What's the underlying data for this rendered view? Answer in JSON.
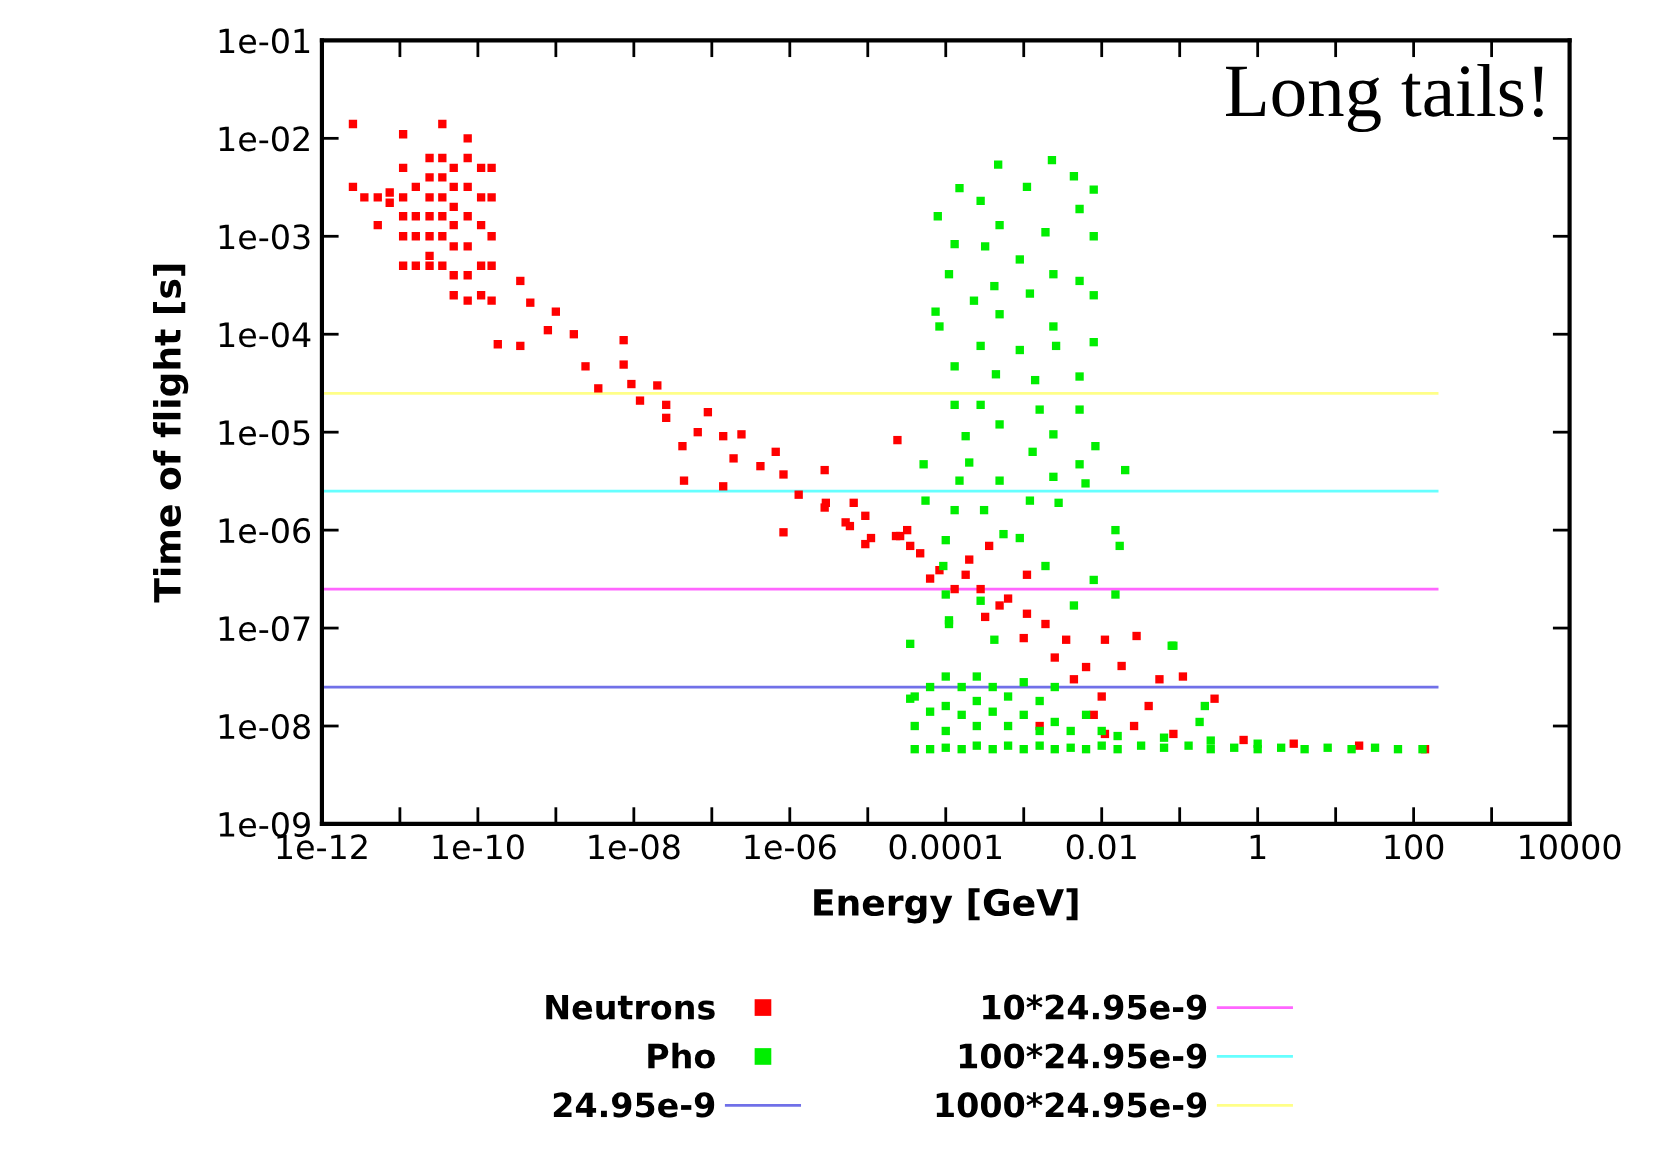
{
  "chart_data": {
    "type": "scatter",
    "xlabel": "Energy [GeV]",
    "ylabel": "Time of flight [s]",
    "log": "xy",
    "grid": false,
    "legend": "bottom",
    "annotations": [
      "Long tails!"
    ],
    "xlim": [
      1e-12,
      10000
    ],
    "ylim": [
      1e-09,
      0.1
    ],
    "xticks": [
      {
        "value": 1e-12,
        "label": "1e-12"
      },
      {
        "value": 1e-11,
        "label": null
      },
      {
        "value": 1e-10,
        "label": "1e-10"
      },
      {
        "value": 1e-09,
        "label": null
      },
      {
        "value": 1e-08,
        "label": "1e-08"
      },
      {
        "value": 1e-07,
        "label": null
      },
      {
        "value": 1e-06,
        "label": "1e-06"
      },
      {
        "value": 1e-05,
        "label": null
      },
      {
        "value": 0.0001,
        "label": "0.0001"
      },
      {
        "value": 0.001,
        "label": null
      },
      {
        "value": 0.01,
        "label": "0.01"
      },
      {
        "value": 0.1,
        "label": null
      },
      {
        "value": 1,
        "label": "1"
      },
      {
        "value": 10,
        "label": null
      },
      {
        "value": 100,
        "label": "100"
      },
      {
        "value": 1000,
        "label": null
      },
      {
        "value": 10000,
        "label": "10000"
      }
    ],
    "yticks": [
      {
        "value": 1e-09,
        "label": "1e-09"
      },
      {
        "value": 1e-08,
        "label": "1e-08"
      },
      {
        "value": 1e-07,
        "label": "1e-07"
      },
      {
        "value": 1e-06,
        "label": "1e-06"
      },
      {
        "value": 1e-05,
        "label": "1e-05"
      },
      {
        "value": 0.0001,
        "label": "1e-04"
      },
      {
        "value": 0.001,
        "label": "1e-03"
      },
      {
        "value": 0.01,
        "label": "1e-02"
      },
      {
        "value": 0.1,
        "label": "1e-01"
      }
    ],
    "series": [
      {
        "name": "Neutrons",
        "marker": "square",
        "color": "#ff0000",
        "x": [
          2.5e-12,
          2.5e-12,
          1.1e-11,
          3.5e-11,
          7.4e-11,
          3.5e-12,
          5.2e-12,
          5.2e-12,
          7.4e-12,
          7.4e-12,
          1.1e-11,
          1.1e-11,
          1.1e-11,
          1.1e-11,
          1.1e-11,
          1.6e-11,
          1.6e-11,
          1.6e-11,
          1.6e-11,
          2.4e-11,
          2.4e-11,
          2.4e-11,
          2.4e-11,
          2.4e-11,
          2.4e-11,
          2.4e-11,
          3.5e-11,
          3.5e-11,
          3.5e-11,
          3.5e-11,
          3.5e-11,
          3.5e-11,
          4.9e-11,
          4.9e-11,
          4.9e-11,
          4.9e-11,
          4.9e-11,
          4.9e-11,
          4.9e-11,
          7.4e-11,
          7.4e-11,
          7.4e-11,
          7.4e-11,
          7.4e-11,
          7.4e-11,
          1.1e-10,
          1.1e-10,
          1.1e-10,
          1.1e-10,
          1.1e-10,
          1.5e-10,
          1.5e-10,
          1.5e-10,
          1.5e-10,
          1.5e-10,
          3.5e-10,
          4.7e-10,
          1e-09,
          1.8e-10,
          3.5e-10,
          7.9e-10,
          1.7e-09,
          2.4e-09,
          3.5e-09,
          7.4e-09,
          7.4e-09,
          9.3e-09,
          1.2e-08,
          2e-08,
          2.6e-08,
          2.6e-08,
          8.9e-08,
          6.6e-08,
          4.2e-08,
          1.4e-07,
          2.4e-07,
          1.9e-07,
          1.4e-07,
          4.4e-08,
          4.2e-07,
          6.6e-07,
          8.3e-07,
          2.8e-06,
          1.3e-06,
          2.9e-06,
          8.3e-07,
          6.6e-06,
          5.2e-06,
          9.3e-06,
          1.1e-05,
          2.4e-05,
          2.3e-05,
          3.5e-05,
          2.8e-06,
          5.9e-06,
          9.3e-06,
          2.6e-05,
          4.7e-05,
          8.3e-05,
          0.00018,
          0.00028,
          0.00049,
          0.0011,
          0.0019,
          0.0035,
          0.011,
          0.028,
          0.0011,
          0.00036,
          0.018,
          0.055,
          0.11,
          0.28,
          0.0079,
          0.026,
          0.083,
          0.011,
          0.0016,
          0.0044,
          0.66,
          2.9,
          140,
          20,
          6.3e-05,
          0.00013,
          0.00032,
          0.00063,
          0.001,
          0.0025,
          0.0063,
          0.01,
          0.04,
          0.0002,
          3.2e-05
        ],
        "values": [
          0.014,
          0.0032,
          0.011,
          0.014,
          0.01,
          0.0025,
          0.0025,
          0.0013,
          0.0028,
          0.0022,
          0.005,
          0.0025,
          0.0016,
          0.001,
          0.0005,
          0.0032,
          0.0016,
          0.001,
          0.0005,
          0.0063,
          0.004,
          0.0025,
          0.0016,
          0.001,
          0.00063,
          0.0005,
          0.0063,
          0.004,
          0.0025,
          0.0016,
          0.001,
          0.0005,
          0.005,
          0.0032,
          0.002,
          0.0013,
          0.00079,
          0.0004,
          0.00025,
          0.0063,
          0.0032,
          0.0016,
          0.00079,
          0.0004,
          0.00022,
          0.005,
          0.0025,
          0.0013,
          0.0005,
          0.00025,
          0.005,
          0.0025,
          0.001,
          0.0005,
          0.00022,
          0.00035,
          0.00021,
          0.00017,
          7.9e-05,
          7.6e-05,
          0.00011,
          0.0001,
          4.7e-05,
          2.8e-05,
          8.7e-05,
          4.9e-05,
          3.1e-05,
          2.1e-05,
          3e-05,
          1.9e-05,
          1.4e-05,
          1.6e-05,
          1e-05,
          7.2e-06,
          9.1e-06,
          9.5e-06,
          5.4e-06,
          2.8e-06,
          3.2e-06,
          4.5e-06,
          6.3e-06,
          3.7e-06,
          4.1e-06,
          2.3e-06,
          1.9e-06,
          9.5e-07,
          1.9e-06,
          1.2e-06,
          1.4e-06,
          8.3e-07,
          8.3e-06,
          8.7e-07,
          6.9e-07,
          1.7e-06,
          1.1e-06,
          7.2e-07,
          8.7e-07,
          5.8e-07,
          3.9e-07,
          3.5e-07,
          2.5e-07,
          1.7e-07,
          1.4e-07,
          1.1e-07,
          7.6e-08,
          7.6e-08,
          8.3e-08,
          3.5e-07,
          6.9e-07,
          4.1e-08,
          3e-08,
          3.2e-08,
          1.9e-08,
          1.3e-08,
          1e-08,
          8.3e-09,
          8.3e-09,
          1e-08,
          3e-08,
          7.2e-09,
          6.6e-09,
          5.8e-09,
          6.3e-09,
          3.2e-07,
          2.5e-07,
          1.3e-07,
          2e-07,
          7.9e-08,
          5e-08,
          4e-08,
          2e-08,
          1.6e-08,
          5e-07,
          1e-06
        ]
      },
      {
        "name": "Pho",
        "marker": "square",
        "color": "#00ee00",
        "x": [
          0.00047,
          0.0023,
          7.9e-05,
          0.00015,
          0.0044,
          0.0079,
          0.0011,
          0.00028,
          0.00049,
          0.0019,
          0.0052,
          0.0079,
          0.00013,
          0.00032,
          0.00089,
          0.00011,
          0.0024,
          0.0052,
          0.00042,
          7.4e-05,
          0.00023,
          0.0012,
          0.0079,
          8.3e-05,
          0.00049,
          0.0024,
          0.00028,
          0.00089,
          0.0026,
          0.0079,
          0.00013,
          0.00044,
          0.0014,
          0.0052,
          0.00013,
          0.00028,
          0.0016,
          0.0052,
          0.00018,
          0.00049,
          0.0024,
          0.0083,
          5.2e-05,
          0.0002,
          0.0013,
          0.0052,
          0.02,
          0.00015,
          0.00049,
          0.0024,
          0.0062,
          5.5e-05,
          0.00013,
          0.00031,
          0.0012,
          0.0028,
          0.015,
          0.017,
          0.00055,
          0.00089,
          0.0001,
          9.3e-05,
          0.0019,
          0.0079,
          0.0001,
          0.00028,
          0.0044,
          0.00011,
          3.5e-05,
          0.079,
          0.015,
          0.00011,
          0.00042,
          0.083,
          3.5e-05,
          0.18,
          0.21,
          4e-05,
          4e-05,
          4e-05,
          6.3e-05,
          6.3e-05,
          6.3e-05,
          0.0001,
          0.0001,
          0.0001,
          0.0001,
          0.00016,
          0.00016,
          0.00016,
          0.00025,
          0.00025,
          0.00025,
          0.00025,
          0.0004,
          0.0004,
          0.0004,
          0.00063,
          0.00063,
          0.00063,
          0.001,
          0.001,
          0.001,
          0.0016,
          0.0016,
          0.0016,
          0.0025,
          0.0025,
          0.0025,
          0.004,
          0.004,
          0.0063,
          0.0063,
          0.01,
          0.01,
          0.016,
          0.016,
          0.032,
          0.063,
          0.063,
          0.13,
          0.25,
          0.25,
          0.5,
          1,
          1,
          2,
          4,
          7.9,
          16,
          32,
          63,
          130
        ],
        "values": [
          0.0054,
          0.006,
          0.0016,
          0.0031,
          0.0041,
          0.003,
          0.0032,
          0.0023,
          0.0013,
          0.0011,
          0.0019,
          0.001,
          0.00083,
          0.00079,
          0.00058,
          0.00041,
          0.00041,
          0.00035,
          0.00031,
          0.00017,
          0.00022,
          0.00026,
          0.00025,
          0.00012,
          0.00016,
          0.00012,
          7.6e-05,
          6.9e-05,
          7.6e-05,
          8.3e-05,
          4.7e-05,
          3.9e-05,
          3.4e-05,
          3.7e-05,
          1.9e-05,
          1.9e-05,
          1.7e-05,
          1.7e-05,
          9.1e-06,
          1.2e-05,
          9.5e-06,
          7.2e-06,
          4.7e-06,
          4.9e-06,
          6.3e-06,
          4.7e-06,
          4.1e-06,
          3.2e-06,
          3.2e-06,
          3.5e-06,
          3e-06,
          2e-06,
          1.6e-06,
          1.6e-06,
          2e-06,
          1.9e-06,
          1e-06,
          6.9e-07,
          9.1e-07,
          8.3e-07,
          7.9e-07,
          4.3e-07,
          4.3e-07,
          3.1e-07,
          2.2e-07,
          1.9e-07,
          1.7e-07,
          1.1e-07,
          6.9e-08,
          6.6e-08,
          2.2e-07,
          1.2e-07,
          7.6e-08,
          6.6e-08,
          1.9e-08,
          1.1e-08,
          1.6e-08,
          5.8e-09,
          1e-08,
          2e-08,
          5.8e-09,
          1.4e-08,
          2.5e-08,
          6e-09,
          8.9e-09,
          1.6e-08,
          3.2e-08,
          5.8e-09,
          1.3e-08,
          2.5e-08,
          6.3e-09,
          1e-08,
          1.8e-08,
          3.2e-08,
          5.8e-09,
          1.4e-08,
          2.5e-08,
          6.3e-09,
          1e-08,
          2e-08,
          5.8e-09,
          1.3e-08,
          2.8e-08,
          6.3e-09,
          8.9e-09,
          1.8e-08,
          5.8e-09,
          1.1e-08,
          2.5e-08,
          6e-09,
          8.9e-09,
          5.8e-09,
          1.3e-08,
          6.3e-09,
          8.9e-09,
          5.8e-09,
          7.9e-09,
          6.3e-09,
          6e-09,
          7.6e-09,
          6.3e-09,
          5.8e-09,
          7.1e-09,
          6e-09,
          5.8e-09,
          6.6e-09,
          6e-09,
          5.8e-09,
          6e-09,
          5.8e-09,
          6e-09,
          5.8e-09,
          5.8e-09
        ]
      },
      {
        "name": "24.95e-9",
        "type": "line",
        "color": "#7070e8",
        "x": [
          1e-12,
          200
        ],
        "values": [
          2.495e-08,
          2.495e-08
        ]
      },
      {
        "name": "10*24.95e-9",
        "type": "line",
        "color": "#ff66ff",
        "x": [
          1e-12,
          200
        ],
        "values": [
          2.495e-07,
          2.495e-07
        ]
      },
      {
        "name": "100*24.95e-9",
        "type": "line",
        "color": "#66ffff",
        "x": [
          1e-12,
          200
        ],
        "values": [
          2.495e-06,
          2.495e-06
        ]
      },
      {
        "name": "1000*24.95e-9",
        "type": "line",
        "color": "#ffff88",
        "x": [
          1e-12,
          200
        ],
        "values": [
          2.495e-05,
          2.495e-05
        ]
      }
    ]
  }
}
